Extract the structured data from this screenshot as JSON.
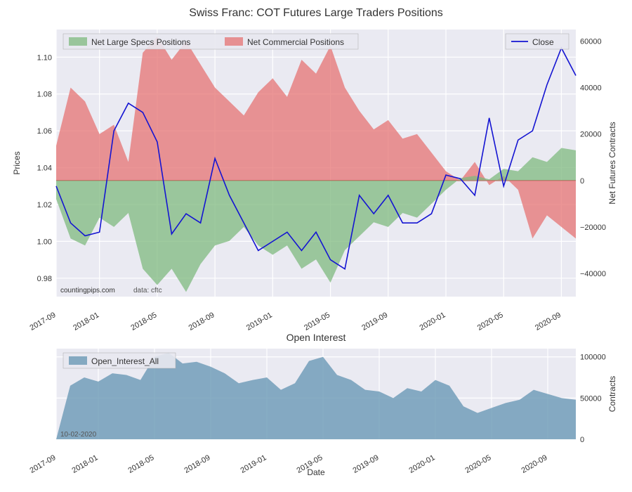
{
  "main": {
    "title": "Swiss Franc: COT Futures Large Traders Positions",
    "left_axis": {
      "label": "Prices",
      "min": 0.97,
      "max": 1.115,
      "ticks": [
        0.98,
        1.0,
        1.02,
        1.04,
        1.06,
        1.08,
        1.1
      ]
    },
    "right_axis": {
      "label": "Net Futures Contracts",
      "min": -50000,
      "max": 65000,
      "ticks": [
        -40000,
        -20000,
        0,
        20000,
        40000,
        60000
      ],
      "tick_labels": [
        "−40000",
        "−20000",
        "0",
        "20000",
        "40000",
        "60000"
      ]
    },
    "legend": {
      "specs": "Net Large Specs Positions",
      "commercial": "Net Commercial Positions",
      "close": "Close"
    },
    "colors": {
      "specs_fill": "#7fb97f",
      "commercial_fill": "#e57373",
      "close_line": "#1414d2",
      "plot_bg": "#eaeaf2",
      "grid": "#ffffff",
      "baseline": "#b94a48"
    },
    "watermark": "countingpips.com",
    "data_source": "data: cftc",
    "zero_price": 1.035,
    "dates": [
      "2017-09",
      "2018-01",
      "2018-05",
      "2018-09",
      "2019-01",
      "2019-05",
      "2019-09",
      "2020-01",
      "2020-05",
      "2020-09"
    ],
    "series_dates": [
      "2017-10",
      "2017-11",
      "2017-12",
      "2018-01",
      "2018-02",
      "2018-03",
      "2018-04",
      "2018-05",
      "2018-06",
      "2018-07",
      "2018-08",
      "2018-09",
      "2018-10",
      "2018-11",
      "2018-12",
      "2019-01",
      "2019-02",
      "2019-03",
      "2019-04",
      "2019-05",
      "2019-06",
      "2019-07",
      "2019-08",
      "2019-09",
      "2019-10",
      "2019-11",
      "2019-12",
      "2020-01",
      "2020-02",
      "2020-03",
      "2020-04",
      "2020-05",
      "2020-06",
      "2020-07",
      "2020-08",
      "2020-09",
      "2020-10"
    ],
    "commercial": [
      15000,
      40000,
      34000,
      20000,
      24000,
      8000,
      55000,
      62000,
      52000,
      60000,
      50000,
      40000,
      34000,
      28000,
      38000,
      44000,
      36000,
      52000,
      46000,
      58000,
      40000,
      30000,
      22000,
      26000,
      18000,
      20000,
      12000,
      4000,
      0,
      8000,
      -2000,
      2000,
      -4000,
      -25000,
      -15000,
      -20000,
      -25000
    ],
    "specs": [
      -8000,
      -25000,
      -28000,
      -16000,
      -20000,
      -14000,
      -38000,
      -45000,
      -38000,
      -48000,
      -36000,
      -28000,
      -26000,
      -20000,
      -28000,
      -32000,
      -28000,
      -38000,
      -34000,
      -44000,
      -30000,
      -24000,
      -18000,
      -20000,
      -14000,
      -16000,
      -10000,
      -4000,
      1000,
      2000,
      500,
      5000,
      4000,
      10000,
      8000,
      14000,
      13000
    ],
    "close": [
      1.03,
      1.01,
      1.003,
      1.005,
      1.06,
      1.075,
      1.07,
      1.054,
      1.004,
      1.015,
      1.01,
      1.045,
      1.025,
      1.01,
      0.995,
      1.0,
      1.005,
      0.995,
      1.005,
      0.99,
      0.985,
      1.025,
      1.015,
      1.025,
      1.01,
      1.01,
      1.015,
      1.036,
      1.034,
      1.025,
      1.067,
      1.03,
      1.055,
      1.06,
      1.085,
      1.105,
      1.09
    ]
  },
  "oi": {
    "title": "Open Interest",
    "legend": "Open_Interest_All",
    "right_axis": {
      "label": "Contracts",
      "min": 0,
      "max": 110000,
      "ticks": [
        0,
        50000,
        100000
      ]
    },
    "x_label": "Date",
    "color_fill": "#6a98b5",
    "plot_bg": "#eaeaf2",
    "date_note": "10-02-2020",
    "values": [
      0,
      65000,
      75000,
      70000,
      80000,
      78000,
      72000,
      100000,
      105000,
      92000,
      94000,
      88000,
      80000,
      68000,
      72000,
      75000,
      60000,
      68000,
      95000,
      100000,
      78000,
      72000,
      60000,
      58000,
      50000,
      62000,
      58000,
      72000,
      65000,
      40000,
      32000,
      38000,
      44000,
      48000,
      60000,
      55000,
      50000,
      48000
    ]
  }
}
